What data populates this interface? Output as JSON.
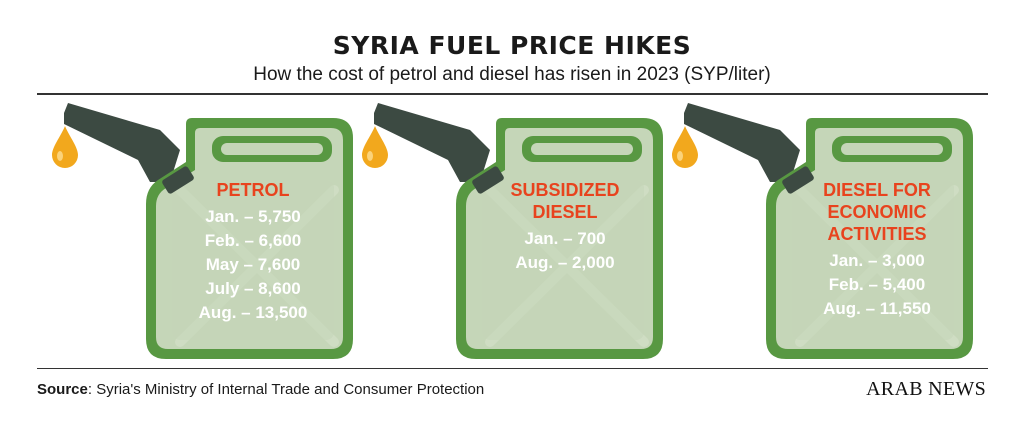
{
  "header": {
    "title": "SYRIA FUEL PRICE HIKES",
    "subtitle": "How the cost of petrol and diesel has risen in 2023 (SYP/liter)"
  },
  "footer": {
    "source_label": "Source",
    "source_text": ": Syria's Ministry of Internal Trade and Consumer Protection",
    "brand": "ARAB NEWS"
  },
  "colors": {
    "can_fill": "#c5d6b8",
    "can_outline": "#589842",
    "nozzle": "#3c4a42",
    "drop": "#f2a81d",
    "category_text": "#e8431e",
    "value_text": "#ffffff"
  },
  "chart_data": {
    "type": "table",
    "title": "SYRIA FUEL PRICE HIKES",
    "subtitle": "How the cost of petrol and diesel has risen in 2023 (SYP/liter)",
    "groups": [
      {
        "name": "PETROL",
        "title_lines": [
          "PETROL"
        ],
        "rows": [
          {
            "label": "Jan. – 5,750",
            "month": "Jan.",
            "value": 5750
          },
          {
            "label": "Feb. – 6,600",
            "month": "Feb.",
            "value": 6600
          },
          {
            "label": "May – 7,600",
            "month": "May",
            "value": 7600
          },
          {
            "label": "July – 8,600",
            "month": "July",
            "value": 8600
          },
          {
            "label": "Aug. – 13,500",
            "month": "Aug.",
            "value": 13500
          }
        ]
      },
      {
        "name": "SUBSIDIZED DIESEL",
        "title_lines": [
          "SUBSIDIZED",
          "DIESEL"
        ],
        "rows": [
          {
            "label": "Jan. – 700",
            "month": "Jan.",
            "value": 700
          },
          {
            "label": "Aug. – 2,000",
            "month": "Aug.",
            "value": 2000
          }
        ]
      },
      {
        "name": "DIESEL FOR ECONOMIC ACTIVITIES",
        "title_lines": [
          "DIESEL FOR",
          "ECONOMIC",
          "ACTIVITIES"
        ],
        "rows": [
          {
            "label": "Jan. – 3,000",
            "month": "Jan.",
            "value": 3000
          },
          {
            "label": "Feb. – 5,400",
            "month": "Feb.",
            "value": 5400
          },
          {
            "label": "Aug. – 11,550",
            "month": "Aug.",
            "value": 11550
          }
        ]
      }
    ]
  }
}
